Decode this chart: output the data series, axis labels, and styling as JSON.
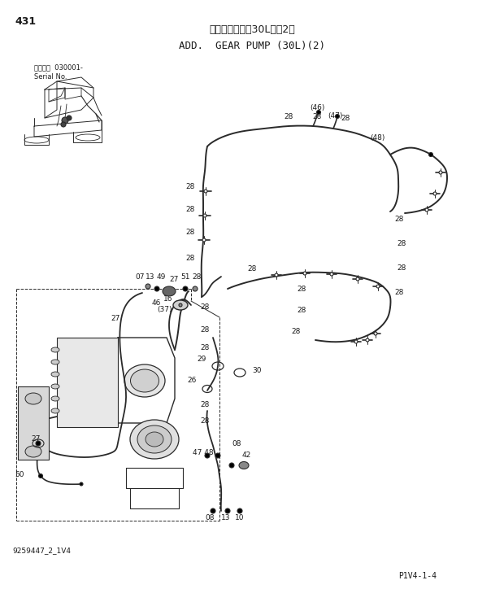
{
  "title_japanese": "追加ポンプ　（30L）（2）",
  "title_english": "ADD.  GEAR PUMP (30L)(2)",
  "page_number": "431",
  "doc_number": "9259447_2_1V4",
  "page_ref": "P1V4-1-4",
  "background": "#ffffff",
  "text_color": "#1a1a1a",
  "line_color": "#2a2a2a",
  "fig_width": 6.2,
  "fig_height": 7.24,
  "dpi": 100
}
